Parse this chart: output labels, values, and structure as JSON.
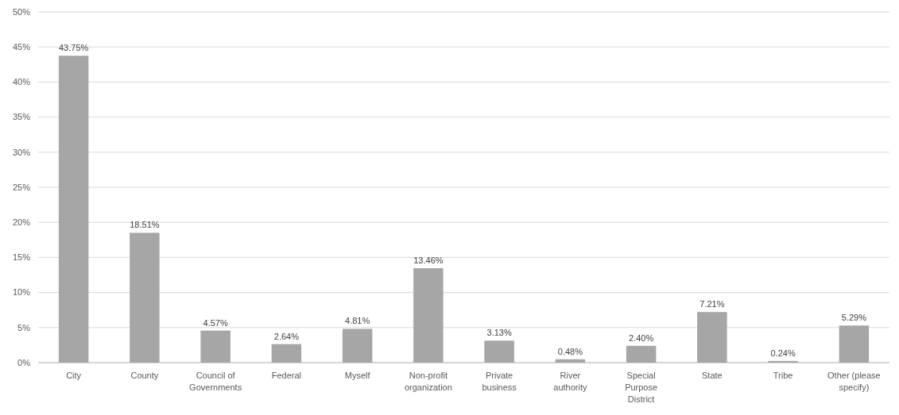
{
  "chart_data": {
    "type": "bar",
    "categories": [
      "City",
      "County",
      "Council of Governments",
      "Federal",
      "Myself",
      "Non-profit organization",
      "Private business",
      "River authority",
      "Special Purpose District",
      "State",
      "Tribe",
      "Other (please specify)"
    ],
    "values": [
      43.75,
      18.51,
      4.57,
      2.64,
      4.81,
      13.46,
      3.13,
      0.48,
      2.4,
      7.21,
      0.24,
      5.29
    ],
    "value_labels": [
      "43.75%",
      "18.51%",
      "4.57%",
      "2.64%",
      "4.81%",
      "13.46%",
      "3.13%",
      "0.48%",
      "2.40%",
      "7.21%",
      "0.24%",
      "5.29%"
    ],
    "color": "#a6a6a6",
    "ylim": [
      0,
      50
    ],
    "yticks": [
      {
        "value": 0,
        "label": "0%"
      },
      {
        "value": 5,
        "label": "5%"
      },
      {
        "value": 10,
        "label": "10%"
      },
      {
        "value": 15,
        "label": "15%"
      },
      {
        "value": 20,
        "label": "20%"
      },
      {
        "value": 25,
        "label": "25%"
      },
      {
        "value": 30,
        "label": "30%"
      },
      {
        "value": 35,
        "label": "35%"
      },
      {
        "value": 40,
        "label": "40%"
      },
      {
        "value": 45,
        "label": "45%"
      },
      {
        "value": 50,
        "label": "50%"
      }
    ],
    "grid": "y"
  }
}
